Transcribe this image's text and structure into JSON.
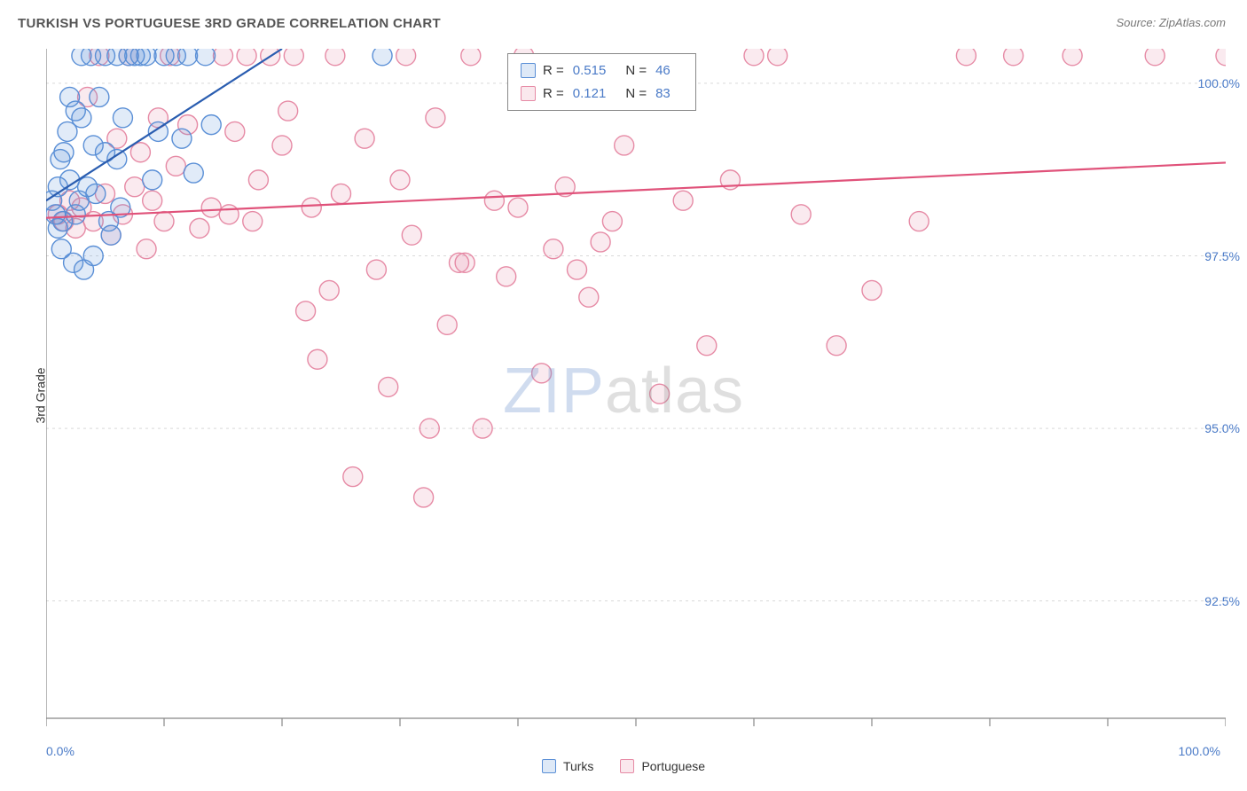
{
  "title": "TURKISH VS PORTUGUESE 3RD GRADE CORRELATION CHART",
  "source": "Source: ZipAtlas.com",
  "ylabel": "3rd Grade",
  "watermark": {
    "left": "ZIP",
    "right": "atlas"
  },
  "chart": {
    "type": "scatter",
    "background_color": "#ffffff",
    "grid_color": "#d9d9d9",
    "axis_color": "#888888",
    "tick_color": "#888888",
    "marker_radius": 11,
    "marker_stroke_width": 1.4,
    "marker_fill_opacity": 0.18,
    "trend_line_width": 2.2,
    "xlim": [
      0,
      100
    ],
    "ylim": [
      90.8,
      100.5
    ],
    "x_tick_positions": [
      0,
      10,
      20,
      30,
      40,
      50,
      60,
      70,
      80,
      90,
      100
    ],
    "x_tick_labels": {
      "0": "0.0%",
      "100": "100.0%"
    },
    "y_ticks": [
      {
        "v": 92.5,
        "label": "92.5%"
      },
      {
        "v": 95.0,
        "label": "95.0%"
      },
      {
        "v": 97.5,
        "label": "97.5%"
      },
      {
        "v": 100.0,
        "label": "100.0%"
      }
    ],
    "series": [
      {
        "key": "turks",
        "name": "Turks",
        "color_stroke": "#5a8fd6",
        "color_fill": "#5a8fd6",
        "trend_color": "#2a5db0",
        "R": "0.515",
        "N": "46",
        "trend": {
          "x1": 0,
          "y1": 98.3,
          "x2": 20,
          "y2": 100.5
        },
        "points": [
          [
            0.5,
            98.3
          ],
          [
            0.8,
            98.1
          ],
          [
            1.0,
            98.5
          ],
          [
            1.2,
            98.9
          ],
          [
            1.4,
            98.0
          ],
          [
            1.5,
            99.0
          ],
          [
            1.8,
            99.3
          ],
          [
            2.0,
            98.6
          ],
          [
            2.3,
            97.4
          ],
          [
            2.5,
            99.6
          ],
          [
            2.8,
            98.3
          ],
          [
            3.0,
            100.4
          ],
          [
            3.2,
            97.3
          ],
          [
            3.5,
            98.5
          ],
          [
            3.8,
            100.4
          ],
          [
            4.0,
            99.1
          ],
          [
            4.2,
            98.4
          ],
          [
            4.5,
            99.8
          ],
          [
            5.0,
            100.4
          ],
          [
            5.3,
            98.0
          ],
          [
            5.5,
            97.8
          ],
          [
            6.0,
            100.4
          ],
          [
            6.3,
            98.2
          ],
          [
            6.5,
            99.5
          ],
          [
            7.0,
            100.4
          ],
          [
            7.5,
            100.4
          ],
          [
            8.0,
            100.4
          ],
          [
            8.5,
            100.4
          ],
          [
            9.0,
            98.6
          ],
          [
            9.5,
            99.3
          ],
          [
            10.0,
            100.4
          ],
          [
            11.0,
            100.4
          ],
          [
            11.5,
            99.2
          ],
          [
            12.0,
            100.4
          ],
          [
            12.5,
            98.7
          ],
          [
            13.5,
            100.4
          ],
          [
            14.0,
            99.4
          ],
          [
            1.0,
            97.9
          ],
          [
            1.3,
            97.6
          ],
          [
            2.0,
            99.8
          ],
          [
            2.5,
            98.1
          ],
          [
            3.0,
            99.5
          ],
          [
            4.0,
            97.5
          ],
          [
            5.0,
            99.0
          ],
          [
            6.0,
            98.9
          ],
          [
            28.5,
            100.4
          ]
        ]
      },
      {
        "key": "portuguese",
        "name": "Portuguese",
        "color_stroke": "#e68aa5",
        "color_fill": "#e68aa5",
        "trend_color": "#e0527a",
        "R": "0.121",
        "N": "83",
        "trend": {
          "x1": 0,
          "y1": 98.05,
          "x2": 100,
          "y2": 98.85
        },
        "points": [
          [
            1.0,
            98.1
          ],
          [
            1.5,
            98.0
          ],
          [
            2.0,
            98.3
          ],
          [
            2.5,
            97.9
          ],
          [
            3.0,
            98.2
          ],
          [
            3.5,
            99.8
          ],
          [
            4.0,
            98.0
          ],
          [
            4.5,
            100.4
          ],
          [
            5.0,
            98.4
          ],
          [
            5.5,
            97.8
          ],
          [
            6.0,
            99.2
          ],
          [
            6.5,
            98.1
          ],
          [
            7.0,
            100.4
          ],
          [
            7.5,
            98.5
          ],
          [
            8.0,
            99.0
          ],
          [
            8.5,
            97.6
          ],
          [
            9.0,
            98.3
          ],
          [
            9.5,
            99.5
          ],
          [
            10.0,
            98.0
          ],
          [
            10.5,
            100.4
          ],
          [
            11.0,
            98.8
          ],
          [
            12.0,
            99.4
          ],
          [
            13.0,
            97.9
          ],
          [
            14.0,
            98.2
          ],
          [
            15.0,
            100.4
          ],
          [
            15.5,
            98.1
          ],
          [
            16.0,
            99.3
          ],
          [
            17.0,
            100.4
          ],
          [
            17.5,
            98.0
          ],
          [
            18.0,
            98.6
          ],
          [
            19.0,
            100.4
          ],
          [
            20.0,
            99.1
          ],
          [
            20.5,
            99.6
          ],
          [
            21.0,
            100.4
          ],
          [
            22.0,
            96.7
          ],
          [
            22.5,
            98.2
          ],
          [
            23.0,
            96.0
          ],
          [
            24.0,
            97.0
          ],
          [
            24.5,
            100.4
          ],
          [
            25.0,
            98.4
          ],
          [
            26.0,
            94.3
          ],
          [
            27.0,
            99.2
          ],
          [
            28.0,
            97.3
          ],
          [
            29.0,
            95.6
          ],
          [
            30.0,
            98.6
          ],
          [
            30.5,
            100.4
          ],
          [
            31.0,
            97.8
          ],
          [
            32.0,
            94.0
          ],
          [
            32.5,
            95.0
          ],
          [
            33.0,
            99.5
          ],
          [
            34.0,
            96.5
          ],
          [
            35.0,
            97.4
          ],
          [
            35.5,
            97.4
          ],
          [
            36.0,
            100.4
          ],
          [
            37.0,
            95.0
          ],
          [
            38.0,
            98.3
          ],
          [
            39.0,
            97.2
          ],
          [
            40.0,
            98.2
          ],
          [
            40.5,
            100.4
          ],
          [
            42.0,
            95.8
          ],
          [
            43.0,
            97.6
          ],
          [
            44.0,
            98.5
          ],
          [
            45.0,
            97.3
          ],
          [
            46.0,
            96.9
          ],
          [
            47.0,
            97.7
          ],
          [
            48.0,
            98.0
          ],
          [
            49.0,
            99.1
          ],
          [
            50.0,
            99.8
          ],
          [
            52.0,
            95.5
          ],
          [
            54.0,
            98.3
          ],
          [
            56.0,
            96.2
          ],
          [
            58.0,
            98.6
          ],
          [
            60.0,
            100.4
          ],
          [
            62.0,
            100.4
          ],
          [
            64.0,
            98.1
          ],
          [
            67.0,
            96.2
          ],
          [
            70.0,
            97.0
          ],
          [
            74.0,
            98.0
          ],
          [
            78.0,
            100.4
          ],
          [
            82.0,
            100.4
          ],
          [
            87.0,
            100.4
          ],
          [
            94.0,
            100.4
          ],
          [
            100.0,
            100.4
          ]
        ]
      }
    ]
  },
  "stats_box": {
    "label_R": "R =",
    "label_N": "N ="
  },
  "legend_bottom": [
    {
      "key": "turks",
      "label": "Turks"
    },
    {
      "key": "portuguese",
      "label": "Portuguese"
    }
  ]
}
